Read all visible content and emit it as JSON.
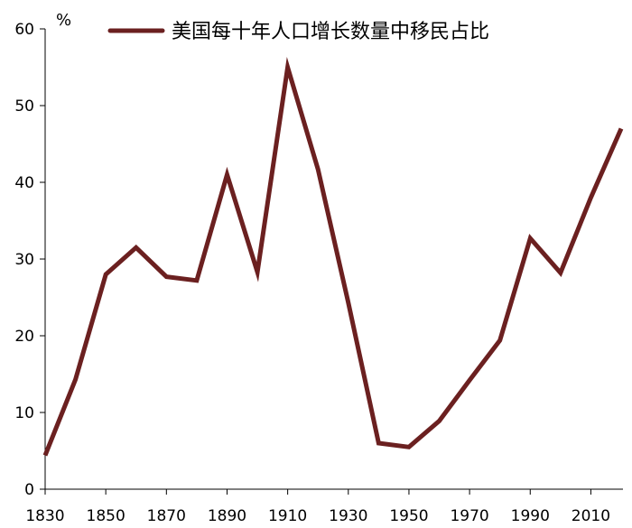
{
  "chart_data": {
    "type": "line",
    "title": "",
    "xlabel": "",
    "ylabel": "%",
    "xlim": [
      1830,
      2020
    ],
    "ylim": [
      0,
      60
    ],
    "x_ticks": [
      1830,
      1850,
      1870,
      1890,
      1910,
      1930,
      1950,
      1970,
      1990,
      2010
    ],
    "y_ticks": [
      0,
      10,
      20,
      30,
      40,
      50,
      60
    ],
    "grid": false,
    "legend_position": "top",
    "series": [
      {
        "name": "美国每十年人口增长数量中移民占比",
        "color": "#6b2020",
        "x": [
          1830,
          1840,
          1850,
          1860,
          1870,
          1880,
          1890,
          1900,
          1910,
          1920,
          1930,
          1940,
          1950,
          1960,
          1970,
          1980,
          1990,
          2000,
          2010,
          2020
        ],
        "values": [
          4.4,
          14.3,
          28.0,
          31.5,
          27.7,
          27.2,
          41.0,
          28.3,
          55.0,
          41.7,
          24.3,
          6.0,
          5.5,
          8.9,
          14.2,
          19.4,
          32.7,
          28.2,
          38.0,
          47.0
        ]
      }
    ]
  }
}
